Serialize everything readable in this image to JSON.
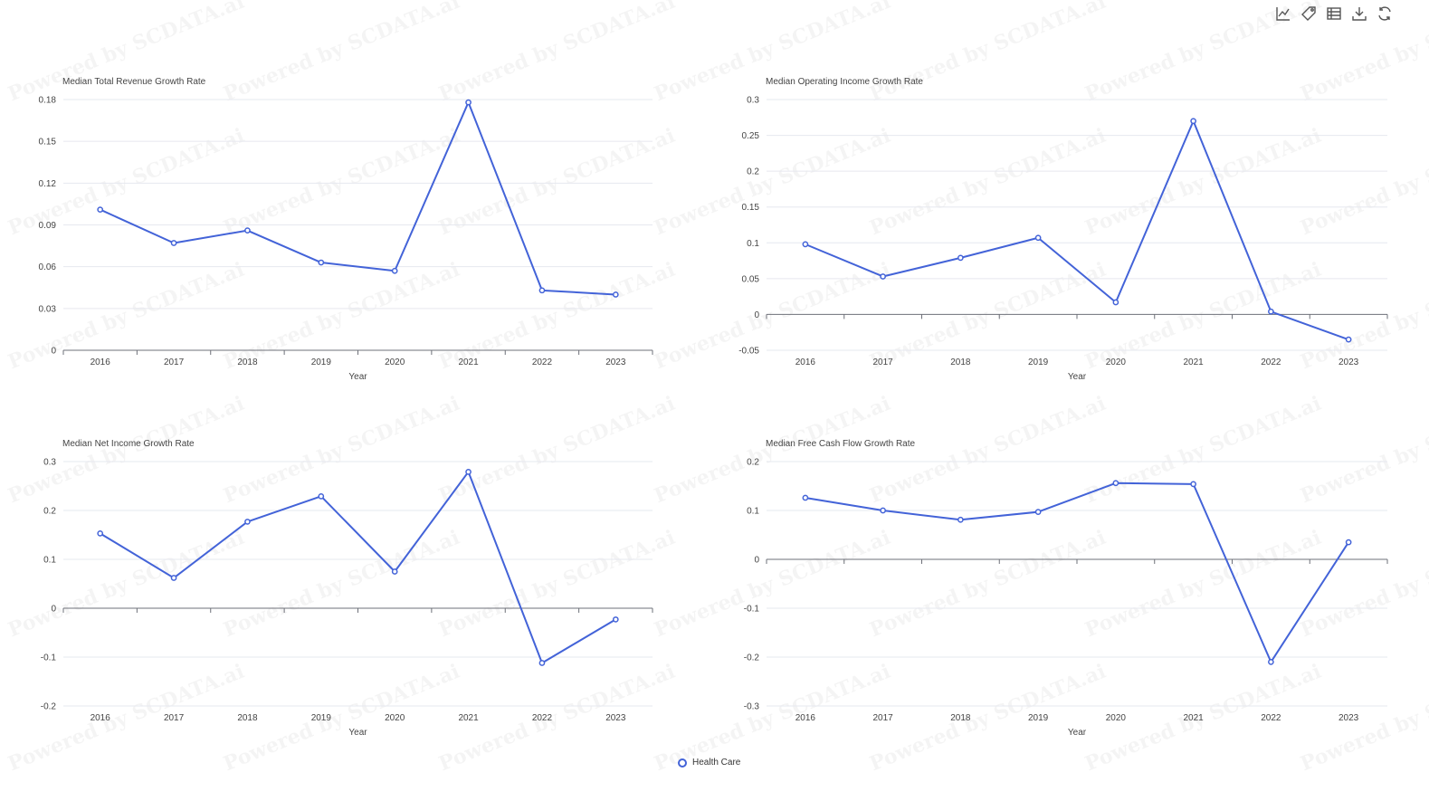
{
  "watermark": "Powered by SCDATA.ai",
  "colors": {
    "series": "#4363d8",
    "grid": "#e6e8ef",
    "axis": "#6e7079",
    "text": "#444"
  },
  "toolbar": {
    "icons": [
      "line-chart-icon",
      "tag-icon",
      "data-table-icon",
      "download-icon",
      "refresh-icon"
    ]
  },
  "legend": {
    "label": "Health Care"
  },
  "chart_data": [
    {
      "type": "line",
      "title": "Median Total Revenue Growth Rate",
      "xlabel": "Year",
      "categories": [
        "2016",
        "2017",
        "2018",
        "2019",
        "2020",
        "2021",
        "2022",
        "2023"
      ],
      "series": [
        {
          "name": "Health Care",
          "values": [
            0.101,
            0.077,
            0.086,
            0.063,
            0.057,
            0.178,
            0.043,
            0.04
          ]
        }
      ],
      "yticks": [
        "0",
        "0.03",
        "0.06",
        "0.09",
        "0.12",
        "0.15",
        "0.18"
      ],
      "ylim": [
        0,
        0.18
      ],
      "grid": true
    },
    {
      "type": "line",
      "title": "Median Operating Income Growth Rate",
      "xlabel": "Year",
      "categories": [
        "2016",
        "2017",
        "2018",
        "2019",
        "2020",
        "2021",
        "2022",
        "2023"
      ],
      "series": [
        {
          "name": "Health Care",
          "values": [
            0.098,
            0.053,
            0.079,
            0.107,
            0.017,
            0.27,
            0.004,
            -0.035
          ]
        }
      ],
      "yticks": [
        "-0.05",
        "0",
        "0.05",
        "0.1",
        "0.15",
        "0.2",
        "0.25",
        "0.3"
      ],
      "ylim": [
        -0.05,
        0.3
      ],
      "grid": true
    },
    {
      "type": "line",
      "title": "Median Net Income Growth Rate",
      "xlabel": "Year",
      "categories": [
        "2016",
        "2017",
        "2018",
        "2019",
        "2020",
        "2021",
        "2022",
        "2023"
      ],
      "series": [
        {
          "name": "Health Care",
          "values": [
            0.153,
            0.062,
            0.177,
            0.229,
            0.075,
            0.279,
            -0.112,
            -0.023
          ]
        }
      ],
      "yticks": [
        "-0.2",
        "-0.1",
        "0",
        "0.1",
        "0.2",
        "0.3"
      ],
      "ylim": [
        -0.2,
        0.3
      ],
      "grid": true
    },
    {
      "type": "line",
      "title": "Median Free Cash Flow Growth Rate",
      "xlabel": "Year",
      "categories": [
        "2016",
        "2017",
        "2018",
        "2019",
        "2020",
        "2021",
        "2022",
        "2023"
      ],
      "series": [
        {
          "name": "Health Care",
          "values": [
            0.126,
            0.1,
            0.081,
            0.097,
            0.156,
            0.154,
            -0.21,
            0.035
          ]
        }
      ],
      "yticks": [
        "-0.3",
        "-0.2",
        "-0.1",
        "0",
        "0.1",
        "0.2"
      ],
      "ylim": [
        -0.3,
        0.2
      ],
      "grid": true
    }
  ]
}
